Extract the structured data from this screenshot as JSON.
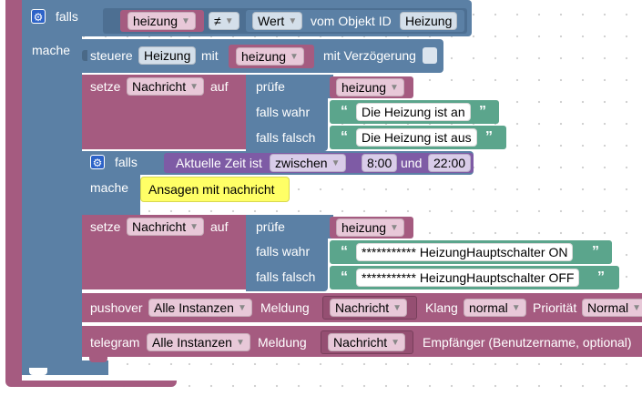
{
  "block1": {
    "falls": "falls",
    "var1": "heizung",
    "op": "≠",
    "wert": "Wert",
    "vom": "vom Objekt ID",
    "obj": "Heizung",
    "mache": "mache"
  },
  "steuere": {
    "label": "steuere",
    "obj": "Heizung",
    "mit": "mit",
    "var": "heizung",
    "delay": "mit Verzögerung"
  },
  "setze1": {
    "label": "setze",
    "var": "Nachricht",
    "auf": "auf",
    "pruefe": "prüfe",
    "cond": "heizung",
    "wahr": "falls wahr",
    "wahr_text": "Die Heizung ist an",
    "falsch": "falls falsch",
    "falsch_text": "Die Heizung ist aus"
  },
  "falls2": {
    "falls": "falls",
    "zeit": "Aktuelle Zeit ist",
    "zwischen": "zwischen",
    "from": "8:00",
    "und": "und",
    "to": "22:00",
    "mache": "mache",
    "comment": "Ansagen mit nachricht"
  },
  "setze2": {
    "label": "setze",
    "var": "Nachricht",
    "auf": "auf",
    "pruefe": "prüfe",
    "cond": "heizung",
    "wahr": "falls wahr",
    "wahr_text": "*********** HeizungHauptschalter ON",
    "falsch": "falls falsch",
    "falsch_text": "*********** HeizungHauptschalter OFF"
  },
  "pushover": {
    "label": "pushover",
    "instances": "Alle Instanzen",
    "meldung": "Meldung",
    "var": "Nachricht",
    "klang": "Klang",
    "klang_val": "normal",
    "prio": "Priorität",
    "prio_val": "Normal"
  },
  "telegram": {
    "label": "telegram",
    "instances": "Alle Instanzen",
    "meldung": "Meldung",
    "var": "Nachricht",
    "empf": "Empfänger (Benutzername, optional)"
  },
  "icons": {
    "gear": "gear-icon",
    "dropdown": "chevron-down-icon"
  },
  "colors": {
    "logic": "#5b80a5",
    "variable": "#a55b80",
    "time": "#7e5ba5",
    "text": "#5ba58c",
    "comment": "#ffff66"
  }
}
